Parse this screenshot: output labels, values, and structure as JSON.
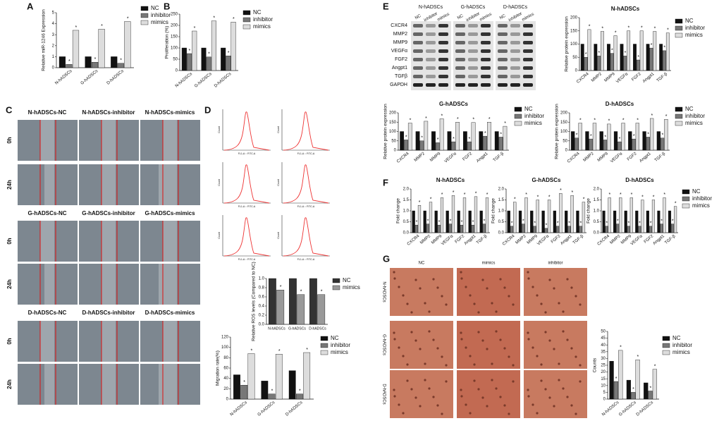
{
  "chart_data": [
    {
      "type": "bar",
      "y_label": "Relative miR-1246 Expression",
      "categories": [
        "N-hADSCs",
        "G-hADSCs",
        "D-hADSCs"
      ],
      "series": [
        {
          "name": "NC",
          "color": "#111111",
          "values": [
            1,
            1,
            1
          ]
        },
        {
          "name": "inhibitor",
          "color": "#777777",
          "values": [
            0.3,
            0.5,
            0.4
          ]
        },
        {
          "name": "mimics",
          "color": "#dddddd",
          "values": [
            3.4,
            3.5,
            4.2
          ]
        }
      ],
      "ylim": [
        0,
        5
      ],
      "yticks": [
        0,
        1,
        2,
        3,
        4,
        5
      ],
      "significance": "*"
    },
    {
      "type": "bar",
      "y_label": "Proliferation (%)",
      "categories": [
        "N-hADSCs",
        "G-hADSCs",
        "D-hADSCs"
      ],
      "series": [
        {
          "name": "NC",
          "color": "#111111",
          "values": [
            100,
            100,
            100
          ]
        },
        {
          "name": "inhibitor",
          "color": "#777777",
          "values": [
            75,
            60,
            65
          ]
        },
        {
          "name": "mimics",
          "color": "#dddddd",
          "values": [
            175,
            220,
            215
          ]
        }
      ],
      "ylim": [
        0,
        250
      ],
      "yticks": [
        0,
        50,
        100,
        150,
        200,
        250
      ],
      "significance": "*"
    },
    {
      "type": "bar",
      "title": "N-hADSCs",
      "y_label": "Relative protein expression",
      "categories": [
        "CXCR4",
        "MMP2",
        "MMP9",
        "VEGFα",
        "FGF2",
        "Angpt1",
        "TGF-β"
      ],
      "series": [
        {
          "name": "NC",
          "color": "#111111",
          "values": [
            100,
            100,
            100,
            100,
            100,
            100,
            100
          ]
        },
        {
          "name": "inhibitor",
          "color": "#777777",
          "values": [
            50,
            55,
            65,
            55,
            40,
            85,
            75
          ]
        },
        {
          "name": "mimics",
          "color": "#dddddd",
          "values": [
            155,
            148,
            132,
            150,
            150,
            148,
            142
          ]
        }
      ],
      "ylim": [
        0,
        200
      ],
      "yticks": [
        0,
        50,
        100,
        150,
        200
      ],
      "significance": "*"
    },
    {
      "type": "bar",
      "title": "G-hADSCs",
      "y_label": "Relative protein expression",
      "categories": [
        "CXCR4",
        "MMP2",
        "MMP9",
        "VEGFα",
        "FGF2",
        "Angpt1",
        "TGF-β"
      ],
      "series": [
        {
          "name": "NC",
          "color": "#111111",
          "values": [
            100,
            100,
            100,
            100,
            100,
            100,
            100
          ]
        },
        {
          "name": "inhibitor",
          "color": "#777777",
          "values": [
            55,
            50,
            40,
            45,
            45,
            75,
            70
          ]
        },
        {
          "name": "mimics",
          "color": "#dddddd",
          "values": [
            145,
            155,
            168,
            150,
            148,
            150,
            128
          ]
        }
      ],
      "ylim": [
        0,
        200
      ],
      "yticks": [
        0,
        50,
        100,
        150,
        200
      ],
      "significance": "*"
    },
    {
      "type": "bar",
      "title": "D-hADSCs",
      "y_label": "Relative protein expression",
      "categories": [
        "CXCR4",
        "MMP2",
        "MMP9",
        "VEGFα",
        "FGF2",
        "Angpt1",
        "TGF-β"
      ],
      "series": [
        {
          "name": "NC",
          "color": "#111111",
          "values": [
            100,
            100,
            100,
            100,
            100,
            100,
            100
          ]
        },
        {
          "name": "inhibitor",
          "color": "#777777",
          "values": [
            65,
            60,
            55,
            45,
            60,
            70,
            65
          ]
        },
        {
          "name": "mimics",
          "color": "#dddddd",
          "values": [
            145,
            145,
            140,
            145,
            145,
            170,
            165
          ]
        }
      ],
      "ylim": [
        0,
        200
      ],
      "yticks": [
        0,
        50,
        100,
        150,
        200
      ],
      "significance": "*"
    },
    {
      "type": "bar",
      "title": "N-hADSCs",
      "y_label": "Fold change",
      "categories": [
        "CXCR4",
        "MMP2",
        "MMP9",
        "VEGFα",
        "FGF2",
        "Angpt1",
        "TGF-β"
      ],
      "series": [
        {
          "name": "NC",
          "color": "#111111",
          "values": [
            1,
            1,
            1,
            1,
            1,
            1,
            1
          ]
        },
        {
          "name": "inhibitor",
          "color": "#777777",
          "values": [
            0.35,
            0.4,
            0.35,
            0.4,
            0.35,
            0.35,
            0.4
          ]
        },
        {
          "name": "mimics",
          "color": "#dddddd",
          "values": [
            1.25,
            1.4,
            1.6,
            1.7,
            1.6,
            1.65,
            1.6
          ]
        }
      ],
      "ylim": [
        0,
        2
      ],
      "yticks": [
        {
          "value": 0,
          "label": "0.0"
        },
        0.5,
        {
          "value": 1,
          "label": "1.0"
        },
        1.5,
        {
          "value": 2,
          "label": "2.0"
        }
      ],
      "significance": "*"
    },
    {
      "type": "bar",
      "title": "G-hADSCs",
      "y_label": "Fold change",
      "categories": [
        "CXCR4",
        "MMP2",
        "MMP9",
        "VEGFα",
        "FGF2",
        "Angpt1",
        "TGF-β"
      ],
      "series": [
        {
          "name": "NC",
          "color": "#111111",
          "values": [
            1,
            1,
            1,
            1,
            1,
            1,
            1
          ]
        },
        {
          "name": "inhibitor",
          "color": "#777777",
          "values": [
            0.3,
            0.4,
            0.3,
            0.2,
            0.3,
            0.3,
            0.3
          ]
        },
        {
          "name": "mimics",
          "color": "#dddddd",
          "values": [
            1.4,
            1.6,
            1.5,
            1.5,
            1.8,
            1.7,
            1.4
          ]
        }
      ],
      "ylim": [
        0,
        2
      ],
      "yticks": [
        {
          "value": 0,
          "label": "0.0"
        },
        0.5,
        {
          "value": 1,
          "label": "1.0"
        },
        1.5,
        {
          "value": 2,
          "label": "2.0"
        }
      ],
      "significance": "*"
    },
    {
      "type": "bar",
      "title": "D-hADSCs",
      "y_label": "Fold change",
      "categories": [
        "CXCR4",
        "MMP2",
        "MMP9",
        "VEGFα",
        "FGF2",
        "Angpt1",
        "TGF-β"
      ],
      "series": [
        {
          "name": "NC",
          "color": "#111111",
          "values": [
            1,
            1,
            1,
            1,
            1,
            1,
            1
          ]
        },
        {
          "name": "inhibitor",
          "color": "#777777",
          "values": [
            0.3,
            0.4,
            0.3,
            0.3,
            0.3,
            0.4,
            0.4
          ]
        },
        {
          "name": "mimics",
          "color": "#dddddd",
          "values": [
            1.6,
            1.6,
            1.6,
            1.5,
            1.5,
            1.6,
            1.2
          ]
        }
      ],
      "ylim": [
        0,
        2
      ],
      "yticks": [
        {
          "value": 0,
          "label": "0.0"
        },
        0.5,
        {
          "value": 1,
          "label": "1.0"
        },
        1.5,
        {
          "value": 2,
          "label": "2.0"
        }
      ],
      "significance": "*"
    },
    {
      "type": "bar",
      "y_label": "Relative ROS levels (Compared to NC)",
      "categories": [
        "N-hADSCs",
        "G-hADSCs",
        "D-hADSCs"
      ],
      "series": [
        {
          "name": "NC",
          "color": "#333333",
          "values": [
            1,
            1,
            1
          ]
        },
        {
          "name": "mimics",
          "color": "#999999",
          "values": [
            0.75,
            0.65,
            0.65
          ]
        }
      ],
      "ylim": [
        0,
        1
      ],
      "yticks": [
        {
          "value": 0,
          "label": "0.0"
        },
        0.2,
        0.4,
        0.6,
        0.8,
        {
          "value": 1,
          "label": "1.0"
        }
      ],
      "significance": "*"
    },
    {
      "type": "bar",
      "y_label": "Migration rate(%)",
      "categories": [
        "N-hADSCs",
        "G-hADSCs",
        "D-hADSCs"
      ],
      "series": [
        {
          "name": "NC",
          "color": "#111111",
          "values": [
            47,
            35,
            55
          ]
        },
        {
          "name": "inhibitor",
          "color": "#777777",
          "values": [
            27,
            10,
            10
          ]
        },
        {
          "name": "mimics",
          "color": "#dddddd",
          "values": [
            88,
            87,
            90
          ]
        }
      ],
      "ylim": [
        0,
        120
      ],
      "yticks": [
        0,
        20,
        40,
        60,
        80,
        100,
        120
      ],
      "significance": "*"
    },
    {
      "type": "bar",
      "y_label": "Counts",
      "categories": [
        "N-hADSCs",
        "G-hADSCs",
        "D-hADSCs"
      ],
      "series": [
        {
          "name": "NC",
          "color": "#111111",
          "values": [
            28,
            14,
            12
          ]
        },
        {
          "name": "inhibitor",
          "color": "#777777",
          "values": [
            13,
            5,
            6
          ]
        },
        {
          "name": "mimics",
          "color": "#dddddd",
          "values": [
            36,
            29,
            22
          ]
        }
      ],
      "ylim": [
        0,
        50
      ],
      "yticks": [
        0,
        5,
        10,
        15,
        20,
        25,
        30,
        35,
        40,
        45,
        50
      ],
      "significance": "*"
    }
  ],
  "figure": {
    "panel_labels": [
      "A",
      "B",
      "C",
      "D",
      "E",
      "F",
      "G"
    ],
    "scratch": {
      "groups": [
        [
          "N-hADSCs-NC",
          "N-hADSCs-inhibitor",
          "N-hADSCs-mimics"
        ],
        [
          "G-hADSCs-NC",
          "G-hADSCs-inhibitor",
          "G-hADSCs-mimics"
        ],
        [
          "D-hADSCs-NC",
          "D-hADSCs-inhibitor",
          "D-hADSCs-mimics"
        ]
      ],
      "times": [
        "0h",
        "24h"
      ]
    },
    "flow": {
      "x_label": "FL1-A :: FITC-A",
      "y_label": "Count"
    },
    "blot": {
      "groups": [
        "N-hADSCs",
        "G-hADSCs",
        "D-hADSCs"
      ],
      "lanes": [
        "NC",
        "inhibitor",
        "mimics"
      ],
      "proteins": [
        "CXCR4",
        "MMP2",
        "MMP9",
        "VEGFα",
        "FGF2",
        "Angpt1",
        "TGFβ",
        "GAPDH"
      ]
    },
    "tube": {
      "columns": [
        "NC",
        "mimics",
        "inhibitor"
      ],
      "rows": [
        "N-hADSCs",
        "G-hADSCs",
        "D-hADSCs"
      ]
    }
  }
}
